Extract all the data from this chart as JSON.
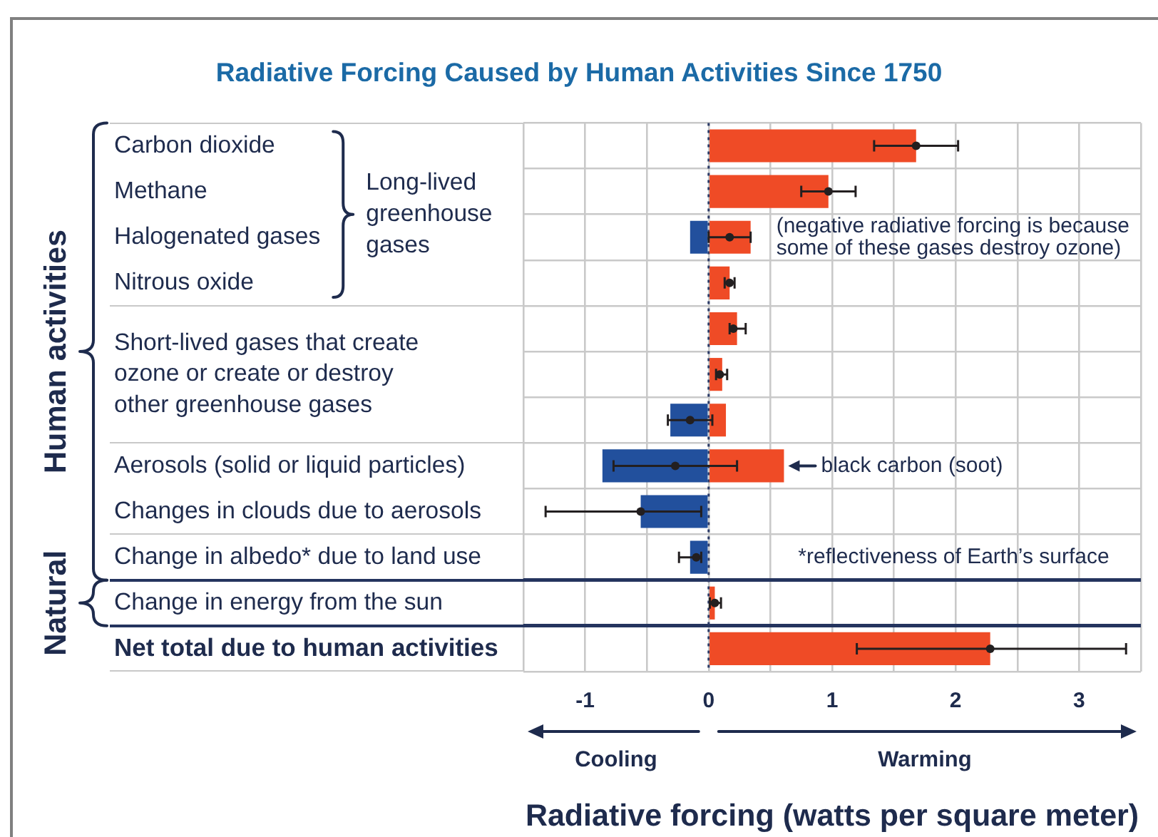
{
  "chart_data": {
    "type": "bar",
    "orientation": "horizontal",
    "stacked": true,
    "title": "Radiative Forcing Caused by Human Activities Since 1750",
    "xlabel": "Radiative forcing (watts per square meter)",
    "categories": [
      "Carbon dioxide",
      "Methane",
      "Halogenated gases",
      "Nitrous oxide",
      null,
      "Short-lived gases that create ozone or create or destroy other greenhouse gases",
      null,
      "Aerosols (solid or liquid particles)",
      "Changes in clouds due to aerosols",
      "Change in albedo* due to land use",
      "Change in energy from the sun",
      "Net total due to human activities"
    ],
    "series": [
      {
        "color": "#ef4b26",
        "values": [
          1.68,
          0.97,
          0.34,
          0.17,
          0.23,
          0.11,
          0.14,
          0.61,
          null,
          null,
          0.05,
          2.28
        ]
      },
      {
        "color": "#22509d",
        "values": [
          null,
          null,
          -0.15,
          null,
          null,
          null,
          -0.31,
          -0.86,
          -0.55,
          -0.15,
          null,
          null
        ]
      },
      {
        "type": "scatter",
        "color": "#231f20",
        "values": [
          1.68,
          0.97,
          0.17,
          0.17,
          0.2,
          0.09,
          -0.15,
          -0.27,
          -0.55,
          -0.1,
          0.05,
          2.28
        ],
        "errors": [
          [
            1.34,
            2.02
          ],
          [
            0.75,
            1.19
          ],
          [
            0,
            0.34
          ],
          [
            0.13,
            0.21
          ],
          [
            0.17,
            0.3
          ],
          [
            0.06,
            0.15
          ],
          [
            -0.33,
            0.03
          ],
          [
            -0.77,
            0.23
          ],
          [
            -1.32,
            -0.06
          ],
          [
            -0.24,
            -0.06
          ],
          [
            0.01,
            0.1
          ],
          [
            1.2,
            3.38
          ]
        ]
      }
    ],
    "xlim": [
      -1.5,
      3.5
    ],
    "xticks": [
      {
        "value": -1.5,
        "label": null
      },
      -1,
      {
        "value": -0.5,
        "label": null
      },
      0,
      {
        "value": 0.5,
        "label": null
      },
      1,
      {
        "value": 1.5,
        "label": null
      },
      2,
      {
        "value": 2.5,
        "label": null
      },
      3,
      {
        "value": 3.5,
        "label": null
      }
    ],
    "grid": true,
    "legend": false,
    "marker": "circle",
    "ref_lines": [
      {
        "axis": "x",
        "value": 0,
        "color": "#2b3a67",
        "line_style": "dotted"
      }
    ],
    "annotations": [
      "Long-lived greenhouse gases",
      "Human activities",
      "Natural",
      {
        "text": "(negative radiative forcing is because some of these gases destroy ozone)",
        "x": 0.34,
        "y": "Halogenated gases"
      },
      {
        "text": "black carbon (soot)",
        "x": 0.61,
        "y": "Aerosols (solid or liquid particles)"
      },
      "*reflectiveness of Earth’s surface",
      "Cooling",
      "Warming"
    ]
  }
}
